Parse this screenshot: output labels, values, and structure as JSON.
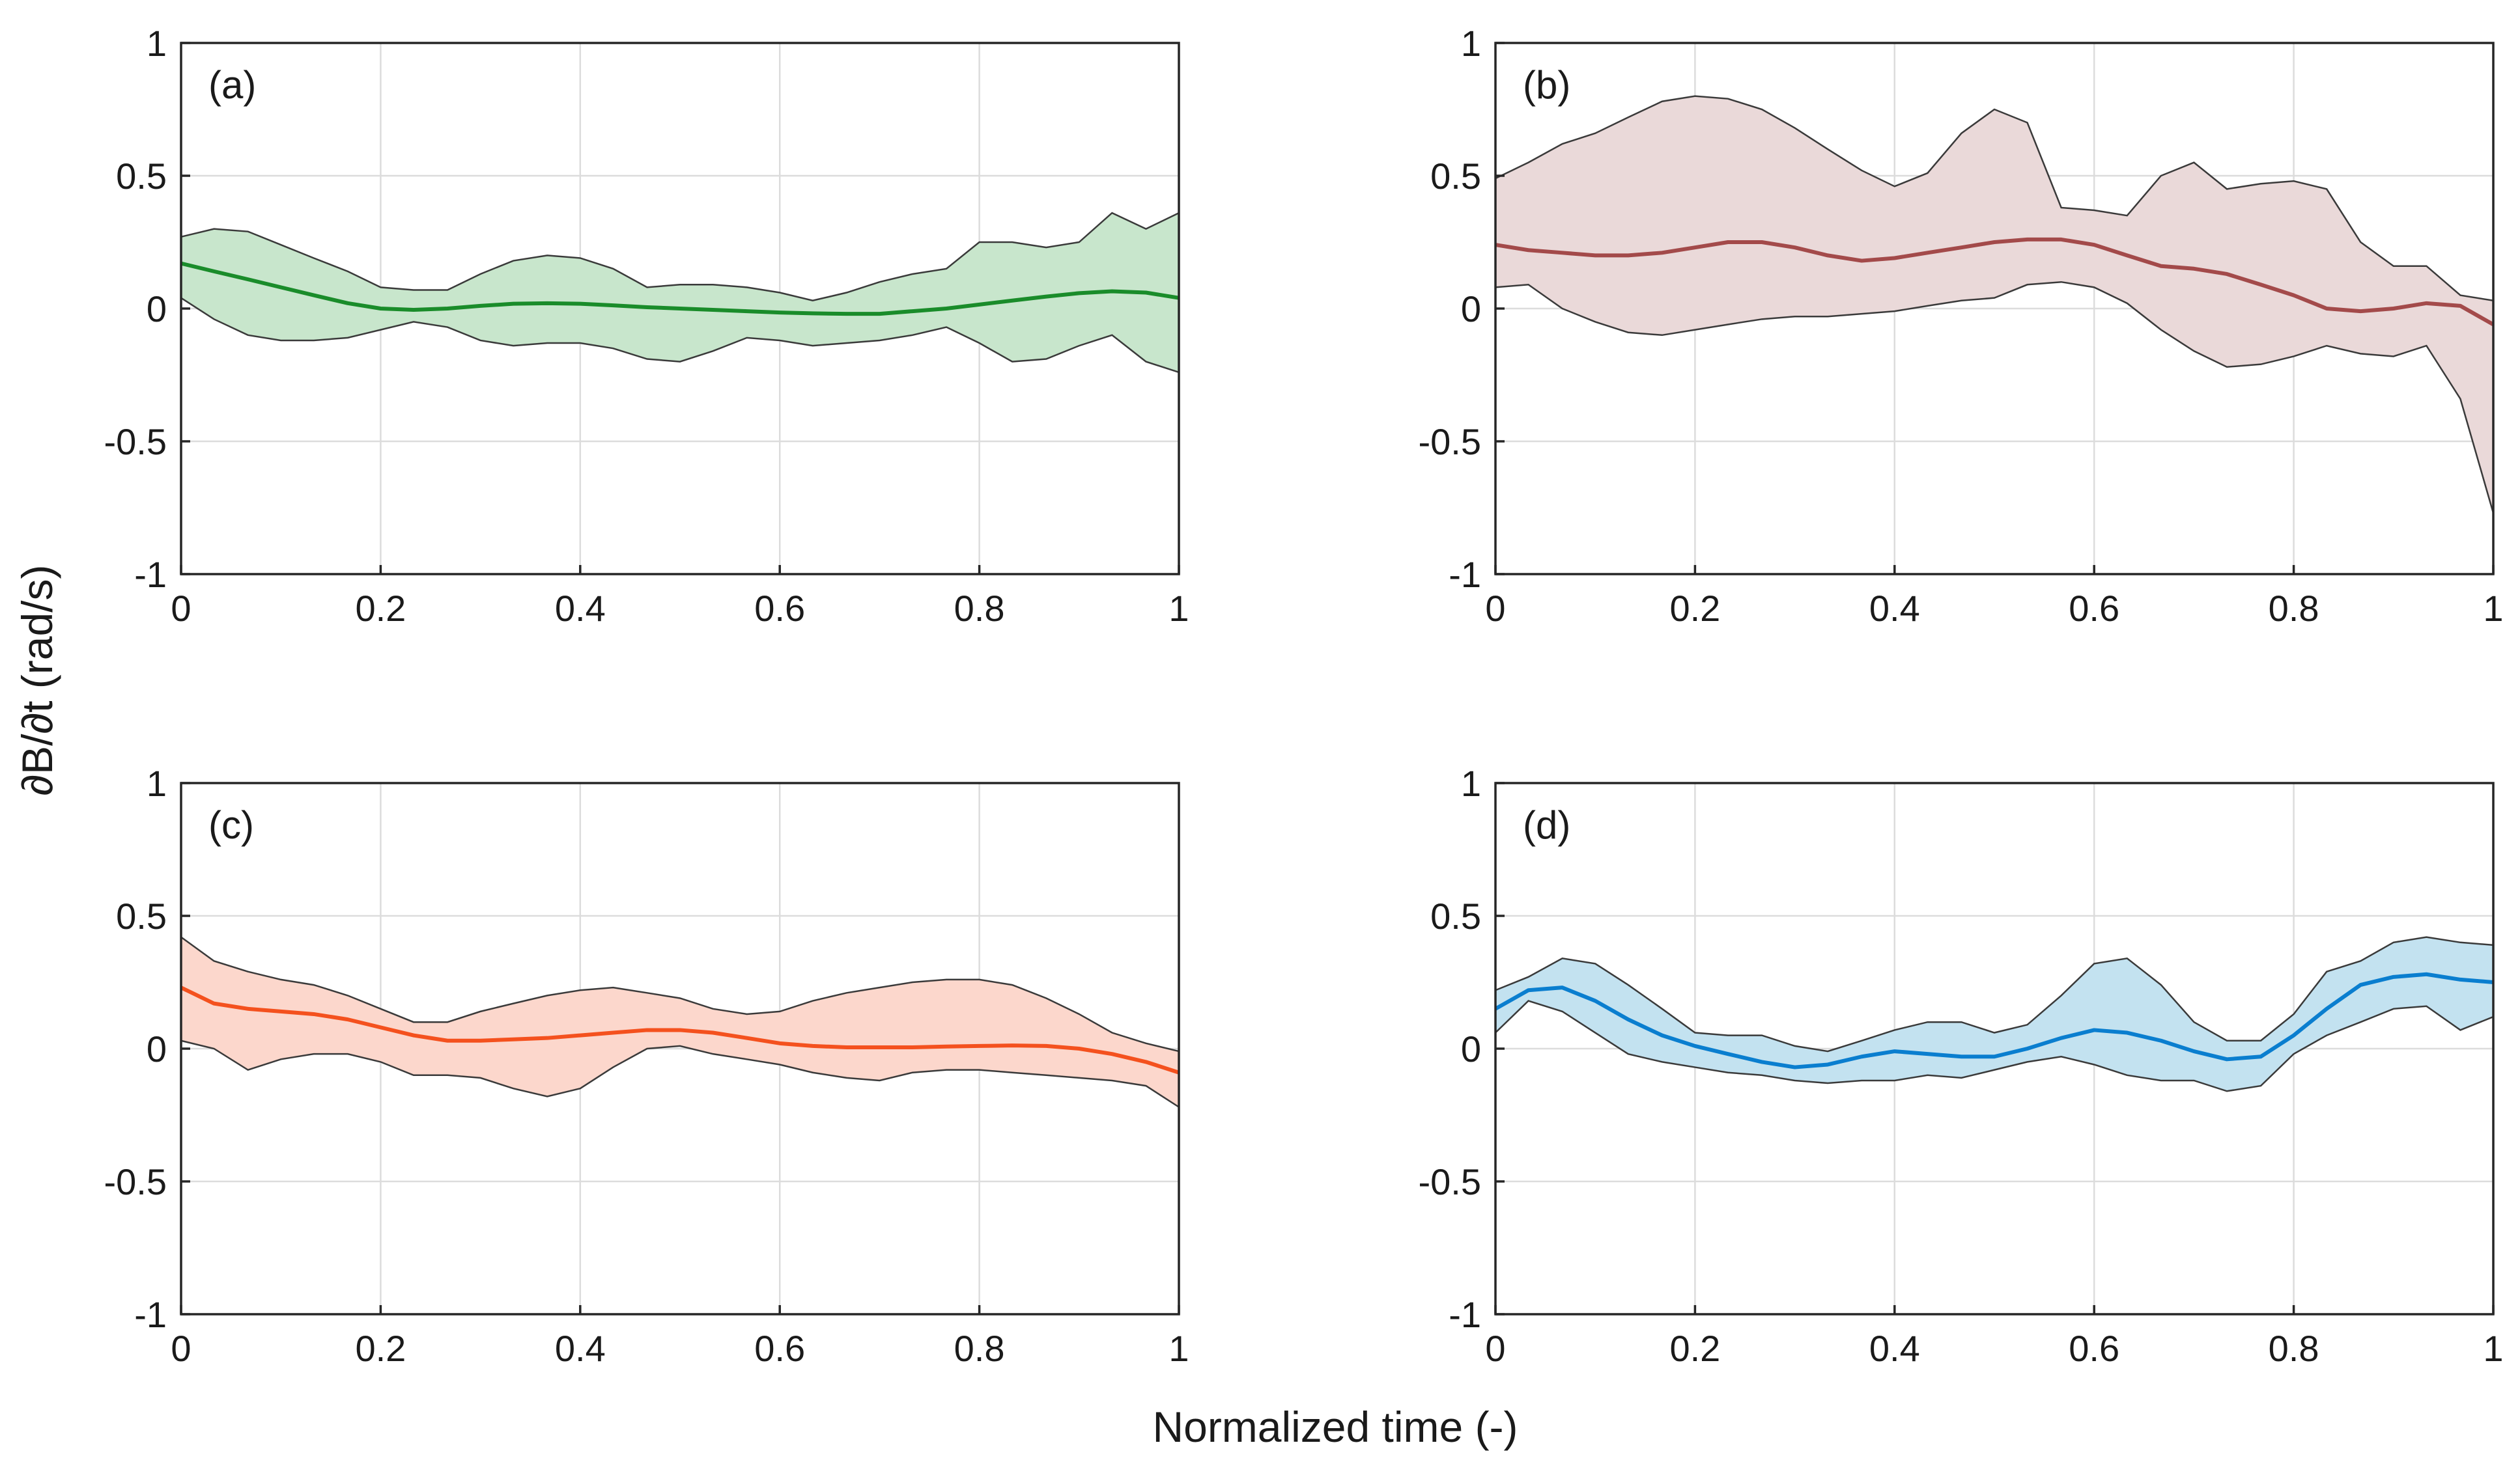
{
  "figure": {
    "ylabel": "∂B/∂t (rad/s)",
    "xlabel": "Normalized time (-)"
  },
  "chart_data": [
    {
      "type": "line",
      "panel": "(a)",
      "color": "#1a8c2a",
      "fill_color": "#c8e6cc",
      "xlim": [
        0,
        1
      ],
      "ylim": [
        -1,
        1
      ],
      "xticks": [
        "0",
        "0.2",
        "0.4",
        "0.6",
        "0.8",
        "1"
      ],
      "yticks": [
        "1",
        "0.5",
        "0",
        "-0.5",
        "-1"
      ],
      "grid": true,
      "x": [
        0,
        0.033,
        0.067,
        0.1,
        0.133,
        0.167,
        0.2,
        0.233,
        0.267,
        0.3,
        0.333,
        0.367,
        0.4,
        0.433,
        0.467,
        0.5,
        0.533,
        0.567,
        0.6,
        0.633,
        0.667,
        0.7,
        0.733,
        0.767,
        0.8,
        0.833,
        0.867,
        0.9,
        0.933,
        0.967,
        1
      ],
      "mean": [
        0.17,
        0.14,
        0.11,
        0.08,
        0.05,
        0.02,
        0.0,
        -0.005,
        0.0,
        0.01,
        0.018,
        0.02,
        0.018,
        0.012,
        0.005,
        0.0,
        -0.005,
        -0.01,
        -0.015,
        -0.018,
        -0.02,
        -0.02,
        -0.01,
        0.0,
        0.015,
        0.03,
        0.045,
        0.058,
        0.065,
        0.06,
        0.04
      ],
      "upper": [
        0.27,
        0.3,
        0.29,
        0.24,
        0.19,
        0.14,
        0.08,
        0.07,
        0.07,
        0.13,
        0.18,
        0.2,
        0.19,
        0.15,
        0.08,
        0.09,
        0.09,
        0.08,
        0.06,
        0.03,
        0.06,
        0.1,
        0.13,
        0.15,
        0.25,
        0.25,
        0.23,
        0.25,
        0.36,
        0.3,
        0.36
      ],
      "lower": [
        0.04,
        -0.04,
        -0.1,
        -0.12,
        -0.12,
        -0.11,
        -0.08,
        -0.05,
        -0.07,
        -0.12,
        -0.14,
        -0.13,
        -0.13,
        -0.15,
        -0.19,
        -0.2,
        -0.16,
        -0.11,
        -0.12,
        -0.14,
        -0.13,
        -0.12,
        -0.1,
        -0.07,
        -0.13,
        -0.2,
        -0.19,
        -0.14,
        -0.1,
        -0.2,
        -0.24
      ]
    },
    {
      "type": "line",
      "panel": "(b)",
      "color": "#a34a4a",
      "fill_color": "#ead9d9",
      "xlim": [
        0,
        1
      ],
      "ylim": [
        -1,
        1
      ],
      "xticks": [
        "0",
        "0.2",
        "0.4",
        "0.6",
        "0.8",
        "1"
      ],
      "yticks": [
        "1",
        "0.5",
        "0",
        "-0.5",
        "-1"
      ],
      "grid": true,
      "x": [
        0,
        0.033,
        0.067,
        0.1,
        0.133,
        0.167,
        0.2,
        0.233,
        0.267,
        0.3,
        0.333,
        0.367,
        0.4,
        0.433,
        0.467,
        0.5,
        0.533,
        0.567,
        0.6,
        0.633,
        0.667,
        0.7,
        0.733,
        0.767,
        0.8,
        0.833,
        0.867,
        0.9,
        0.933,
        0.967,
        1
      ],
      "mean": [
        0.24,
        0.22,
        0.21,
        0.2,
        0.2,
        0.21,
        0.23,
        0.25,
        0.25,
        0.23,
        0.2,
        0.18,
        0.19,
        0.21,
        0.23,
        0.25,
        0.26,
        0.26,
        0.24,
        0.2,
        0.16,
        0.15,
        0.13,
        0.09,
        0.05,
        0.0,
        -0.01,
        0.0,
        0.02,
        0.01,
        -0.06
      ],
      "upper": [
        0.49,
        0.55,
        0.62,
        0.66,
        0.72,
        0.78,
        0.8,
        0.79,
        0.75,
        0.68,
        0.6,
        0.52,
        0.46,
        0.51,
        0.66,
        0.75,
        0.7,
        0.38,
        0.37,
        0.35,
        0.5,
        0.55,
        0.45,
        0.47,
        0.48,
        0.45,
        0.25,
        0.16,
        0.16,
        0.05,
        0.03
      ],
      "lower": [
        0.08,
        0.09,
        0.0,
        -0.05,
        -0.09,
        -0.1,
        -0.08,
        -0.06,
        -0.04,
        -0.03,
        -0.03,
        -0.02,
        -0.01,
        0.01,
        0.03,
        0.04,
        0.09,
        0.1,
        0.08,
        0.02,
        -0.08,
        -0.16,
        -0.22,
        -0.21,
        -0.18,
        -0.14,
        -0.17,
        -0.18,
        -0.14,
        -0.34,
        -0.77
      ]
    },
    {
      "type": "line",
      "panel": "(c)",
      "color": "#f4511e",
      "fill_color": "#fcd7cc",
      "xlim": [
        0,
        1
      ],
      "ylim": [
        -1,
        1
      ],
      "xticks": [
        "0",
        "0.2",
        "0.4",
        "0.6",
        "0.8",
        "1"
      ],
      "yticks": [
        "1",
        "0.5",
        "0",
        "-0.5",
        "-1"
      ],
      "grid": true,
      "x": [
        0,
        0.033,
        0.067,
        0.1,
        0.133,
        0.167,
        0.2,
        0.233,
        0.267,
        0.3,
        0.333,
        0.367,
        0.4,
        0.433,
        0.467,
        0.5,
        0.533,
        0.567,
        0.6,
        0.633,
        0.667,
        0.7,
        0.733,
        0.767,
        0.8,
        0.833,
        0.867,
        0.9,
        0.933,
        0.967,
        1
      ],
      "mean": [
        0.23,
        0.17,
        0.15,
        0.14,
        0.13,
        0.11,
        0.08,
        0.05,
        0.03,
        0.03,
        0.035,
        0.04,
        0.05,
        0.06,
        0.07,
        0.07,
        0.06,
        0.04,
        0.02,
        0.01,
        0.005,
        0.005,
        0.005,
        0.008,
        0.01,
        0.012,
        0.01,
        0.0,
        -0.02,
        -0.05,
        -0.09
      ],
      "upper": [
        0.42,
        0.33,
        0.29,
        0.26,
        0.24,
        0.2,
        0.15,
        0.1,
        0.1,
        0.14,
        0.17,
        0.2,
        0.22,
        0.23,
        0.21,
        0.19,
        0.15,
        0.13,
        0.14,
        0.18,
        0.21,
        0.23,
        0.25,
        0.26,
        0.26,
        0.24,
        0.19,
        0.13,
        0.06,
        0.02,
        -0.01
      ],
      "lower": [
        0.03,
        0.0,
        -0.08,
        -0.04,
        -0.02,
        -0.02,
        -0.05,
        -0.1,
        -0.1,
        -0.11,
        -0.15,
        -0.18,
        -0.15,
        -0.07,
        0.0,
        0.01,
        -0.02,
        -0.04,
        -0.06,
        -0.09,
        -0.11,
        -0.12,
        -0.09,
        -0.08,
        -0.08,
        -0.09,
        -0.1,
        -0.11,
        -0.12,
        -0.14,
        -0.22
      ]
    },
    {
      "type": "line",
      "panel": "(d)",
      "color": "#0a7ecf",
      "fill_color": "#c3e2f0",
      "xlim": [
        0,
        1
      ],
      "ylim": [
        -1,
        1
      ],
      "xticks": [
        "0",
        "0.2",
        "0.4",
        "0.6",
        "0.8",
        "1"
      ],
      "yticks": [
        "1",
        "0.5",
        "0",
        "-0.5",
        "-1"
      ],
      "grid": true,
      "x": [
        0,
        0.033,
        0.067,
        0.1,
        0.133,
        0.167,
        0.2,
        0.233,
        0.267,
        0.3,
        0.333,
        0.367,
        0.4,
        0.433,
        0.467,
        0.5,
        0.533,
        0.567,
        0.6,
        0.633,
        0.667,
        0.7,
        0.733,
        0.767,
        0.8,
        0.833,
        0.867,
        0.9,
        0.933,
        0.967,
        1
      ],
      "mean": [
        0.15,
        0.22,
        0.23,
        0.18,
        0.11,
        0.05,
        0.01,
        -0.02,
        -0.05,
        -0.07,
        -0.06,
        -0.03,
        -0.01,
        -0.02,
        -0.03,
        -0.03,
        0.0,
        0.04,
        0.07,
        0.06,
        0.03,
        -0.01,
        -0.04,
        -0.03,
        0.05,
        0.15,
        0.24,
        0.27,
        0.28,
        0.26,
        0.25
      ],
      "upper": [
        0.22,
        0.27,
        0.34,
        0.32,
        0.24,
        0.15,
        0.06,
        0.05,
        0.05,
        0.01,
        -0.01,
        0.03,
        0.07,
        0.1,
        0.1,
        0.06,
        0.09,
        0.2,
        0.32,
        0.34,
        0.24,
        0.1,
        0.03,
        0.03,
        0.13,
        0.29,
        0.33,
        0.4,
        0.42,
        0.4,
        0.39
      ],
      "lower": [
        0.06,
        0.18,
        0.14,
        0.06,
        -0.02,
        -0.05,
        -0.07,
        -0.09,
        -0.1,
        -0.12,
        -0.13,
        -0.12,
        -0.12,
        -0.1,
        -0.11,
        -0.08,
        -0.05,
        -0.03,
        -0.06,
        -0.1,
        -0.12,
        -0.12,
        -0.16,
        -0.14,
        -0.02,
        0.05,
        0.1,
        0.15,
        0.16,
        0.07,
        0.12
      ]
    }
  ]
}
